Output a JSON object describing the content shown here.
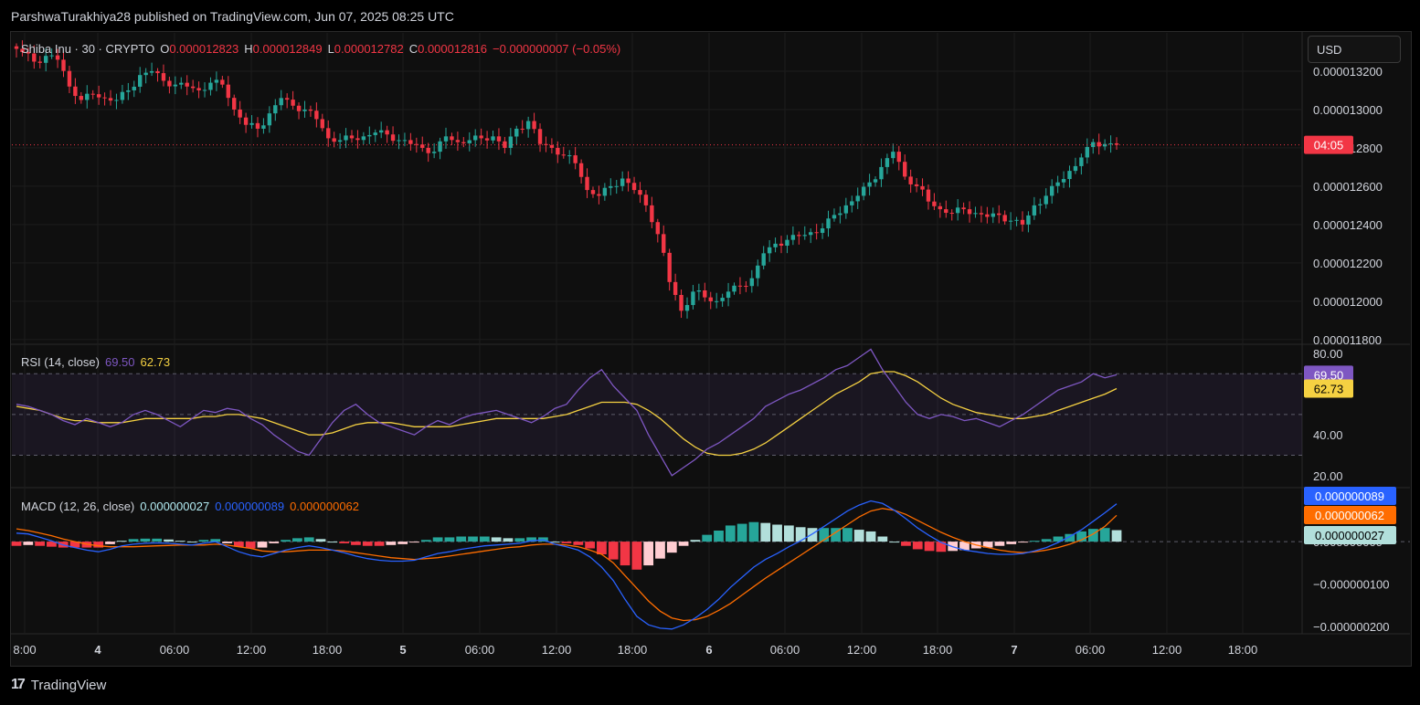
{
  "header": {
    "publisher_line": "ParshwaTurakhiya28 published on TradingView.com, Jun 07, 2025 08:25 UTC"
  },
  "footer": {
    "brand": "TradingView",
    "logo_glyph": "17"
  },
  "toolbar": {
    "currency_label": "USD"
  },
  "colors": {
    "up": "#26a69a",
    "down": "#f23645",
    "rsi": "#7e57c2",
    "rsi_ma": "#f5d142",
    "macd": "#2962ff",
    "signal": "#ff6d00",
    "hist_pos": "#26a69a",
    "hist_neg": "#f23645"
  },
  "chart_data": [
    {
      "type": "candlestick",
      "symbol_label": "Shiba Inu · 30 · CRYPTO",
      "ohlc": {
        "o_label": "O",
        "o": "0.000012823",
        "h_label": "H",
        "h": "0.000012849",
        "l_label": "L",
        "l": "0.000012782",
        "c_label": "C",
        "c": "0.000012816",
        "change": "−0.000000007 (−0.05%)"
      },
      "y_ticks": [
        "0.000013200",
        "0.000013000",
        "0.000012800",
        "0.000012600",
        "0.000012400",
        "0.000012200",
        "0.000012000",
        "0.000011800"
      ],
      "y_tick_values": [
        13.2,
        13.0,
        12.8,
        12.6,
        12.4,
        12.2,
        12.0,
        11.8
      ],
      "y_unit_note": "values in units of 1e-6 USD",
      "ylim": [
        11.78,
        13.4
      ],
      "last_price_badge": "04:05",
      "last_price": 12.816,
      "close_path": [
        13.33,
        13.3,
        13.25,
        13.28,
        13.26,
        13.12,
        13.05,
        13.08,
        13.06,
        13.05,
        13.1,
        13.18,
        13.2,
        13.15,
        13.13,
        13.12,
        13.1,
        13.14,
        13.13,
        13.0,
        12.92,
        12.9,
        12.98,
        13.06,
        13.02,
        13.0,
        12.95,
        12.85,
        12.84,
        12.85,
        12.86,
        12.88,
        12.87,
        12.84,
        12.82,
        12.8,
        12.78,
        12.86,
        12.83,
        12.84,
        12.85,
        12.86,
        12.8,
        12.9,
        12.94,
        12.82,
        12.8,
        12.76,
        12.72,
        12.58,
        12.55,
        12.6,
        12.64,
        12.58,
        12.5,
        12.35,
        12.1,
        11.95,
        12.05,
        12.02,
        12.0,
        12.05,
        12.08,
        12.12,
        12.25,
        12.3,
        12.32,
        12.34,
        12.36,
        12.38,
        12.45,
        12.5,
        12.55,
        12.62,
        12.7,
        12.78,
        12.65,
        12.6,
        12.52,
        12.48,
        12.46,
        12.48,
        12.46,
        12.44,
        12.45,
        12.42,
        12.4,
        12.5,
        12.55,
        12.62,
        12.68,
        12.75,
        12.83,
        12.82,
        12.816
      ],
      "series": [
        {
          "name": "",
          "x_ticks": []
        }
      ]
    },
    {
      "type": "line",
      "indicator_label": "RSI (14, close)",
      "value_rsi": "69.50",
      "value_ma": "62.73",
      "badge_rsi": "69.50",
      "badge_ma": "62.73",
      "y_ticks": [
        "80.00",
        "40.00",
        "20.00"
      ],
      "y_tick_values": [
        80,
        40,
        20
      ],
      "ylim": [
        15,
        84
      ],
      "band": [
        30,
        70
      ],
      "midline": 50,
      "rsi": [
        55,
        54,
        52,
        50,
        47,
        45,
        48,
        46,
        44,
        46,
        50,
        52,
        50,
        47,
        44,
        48,
        52,
        51,
        53,
        52,
        48,
        45,
        40,
        36,
        32,
        30,
        38,
        46,
        52,
        55,
        50,
        46,
        44,
        42,
        40,
        44,
        47,
        45,
        48,
        50,
        51,
        52,
        50,
        48,
        46,
        49,
        53,
        55,
        62,
        68,
        72,
        64,
        58,
        52,
        40,
        30,
        20,
        24,
        28,
        33,
        36,
        40,
        44,
        48,
        54,
        57,
        60,
        62,
        65,
        68,
        72,
        74,
        78,
        82,
        72,
        64,
        56,
        50,
        48,
        50,
        49,
        47,
        48,
        46,
        44,
        47,
        50,
        54,
        58,
        62,
        64,
        66,
        70,
        68,
        69.5
      ],
      "ma": [
        54,
        53,
        52,
        50,
        48,
        47,
        47,
        46,
        46,
        46,
        47,
        48,
        48,
        48,
        48,
        48,
        49,
        49,
        50,
        50,
        49,
        48,
        46,
        44,
        42,
        40,
        40,
        41,
        43,
        45,
        46,
        46,
        46,
        45,
        44,
        44,
        44,
        44,
        45,
        46,
        47,
        48,
        48,
        48,
        48,
        48,
        49,
        50,
        52,
        54,
        56,
        56,
        56,
        55,
        52,
        48,
        43,
        38,
        34,
        31,
        30,
        30,
        31,
        33,
        36,
        40,
        44,
        48,
        52,
        56,
        60,
        63,
        66,
        70,
        71,
        71,
        69,
        66,
        62,
        58,
        55,
        53,
        51,
        50,
        49,
        48,
        48,
        49,
        50,
        52,
        54,
        56,
        58,
        60,
        62.73
      ]
    },
    {
      "type": "line",
      "indicator_label": "MACD (12, 26, close)",
      "value_hist": "0.000000027",
      "value_macd": "0.000000089",
      "value_signal": "0.000000062",
      "badge_macd": "0.000000089",
      "badge_signal": "0.000000062",
      "badge_hist": "0.000000027",
      "y_ticks": [
        "0.000000000",
        "−0.000000100",
        "−0.000000200"
      ],
      "y_tick_values": [
        0,
        -100,
        -200
      ],
      "y_unit_note": "values in units of 1e-9 USD",
      "ylim": [
        -215,
        125
      ],
      "macd": [
        20,
        18,
        10,
        2,
        -8,
        -14,
        -20,
        -24,
        -18,
        -10,
        -6,
        -4,
        -3,
        -4,
        -6,
        -8,
        -4,
        0,
        -12,
        -24,
        -32,
        -36,
        -28,
        -20,
        -14,
        -10,
        -14,
        -20,
        -26,
        -34,
        -40,
        -44,
        -46,
        -46,
        -44,
        -36,
        -28,
        -24,
        -18,
        -14,
        -10,
        -8,
        -6,
        -4,
        2,
        4,
        -6,
        -12,
        -20,
        -36,
        -60,
        -92,
        -136,
        -176,
        -196,
        -204,
        -206,
        -196,
        -180,
        -160,
        -136,
        -108,
        -84,
        -60,
        -42,
        -28,
        -12,
        2,
        18,
        36,
        54,
        72,
        86,
        96,
        90,
        74,
        54,
        32,
        14,
        -2,
        -12,
        -20,
        -24,
        -28,
        -30,
        -30,
        -28,
        -22,
        -14,
        -2,
        12,
        28,
        48,
        68,
        89
      ],
      "signal": [
        30,
        26,
        20,
        14,
        6,
        0,
        -6,
        -10,
        -12,
        -12,
        -12,
        -11,
        -10,
        -9,
        -8,
        -8,
        -8,
        -6,
        -8,
        -12,
        -16,
        -22,
        -24,
        -24,
        -22,
        -20,
        -20,
        -20,
        -22,
        -26,
        -30,
        -34,
        -38,
        -40,
        -42,
        -40,
        -38,
        -34,
        -30,
        -26,
        -22,
        -18,
        -14,
        -12,
        -8,
        -6,
        -6,
        -8,
        -12,
        -20,
        -30,
        -50,
        -80,
        -110,
        -140,
        -164,
        -180,
        -186,
        -184,
        -176,
        -162,
        -146,
        -126,
        -106,
        -86,
        -68,
        -50,
        -32,
        -14,
        4,
        22,
        40,
        58,
        72,
        78,
        74,
        64,
        50,
        36,
        22,
        10,
        0,
        -8,
        -14,
        -20,
        -24,
        -26,
        -24,
        -20,
        -14,
        -6,
        4,
        18,
        36,
        62
      ],
      "histogram": [
        -10,
        -8,
        -10,
        -12,
        -14,
        -14,
        -14,
        -14,
        -6,
        2,
        6,
        7,
        7,
        5,
        2,
        0,
        4,
        6,
        -4,
        -12,
        -16,
        -14,
        -4,
        4,
        8,
        10,
        6,
        0,
        -4,
        -8,
        -10,
        -10,
        -8,
        -6,
        -2,
        4,
        10,
        10,
        12,
        12,
        12,
        10,
        8,
        8,
        10,
        10,
        0,
        -4,
        -8,
        -16,
        -30,
        -42,
        -56,
        -66,
        -56,
        -40,
        -26,
        -10,
        4,
        16,
        26,
        38,
        42,
        46,
        44,
        40,
        38,
        34,
        32,
        32,
        32,
        32,
        28,
        24,
        12,
        0,
        -10,
        -18,
        -22,
        -24,
        -22,
        -20,
        -16,
        -14,
        -10,
        -6,
        -2,
        2,
        6,
        12,
        18,
        24,
        30,
        32,
        27
      ]
    }
  ],
  "time_axis": [
    "8:00",
    "4",
    "06:00",
    "12:00",
    "18:00",
    "5",
    "06:00",
    "12:00",
    "18:00",
    "6",
    "06:00",
    "12:00",
    "18:00",
    "7",
    "06:00",
    "12:00",
    "18:00"
  ]
}
